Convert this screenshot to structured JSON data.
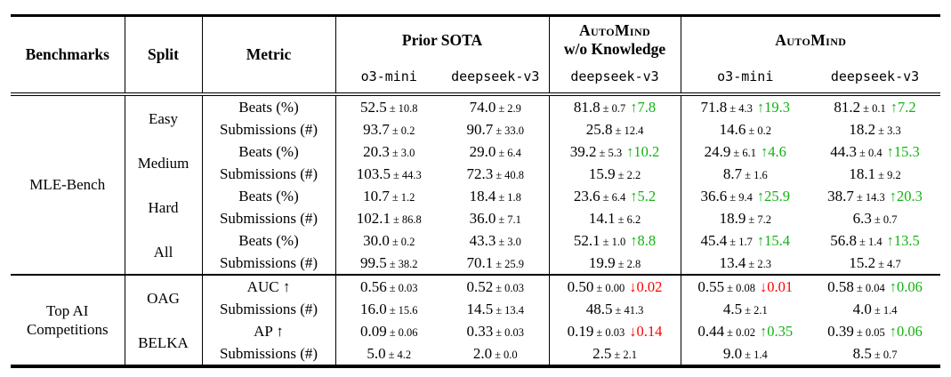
{
  "colors": {
    "up": "#12b212",
    "down": "#fd0000"
  },
  "glyphs": {
    "plus_minus": "±",
    "arrow_up": "↑",
    "arrow_down": "↓"
  },
  "table": {
    "headers": {
      "benchmarks": "Benchmarks",
      "split": "Split",
      "metric": "Metric",
      "groups": [
        {
          "label": "Prior SOTA",
          "smallcaps": false,
          "models": [
            "o3-mini",
            "deepseek-v3"
          ]
        },
        {
          "label": "AutoMind",
          "sublabel": "w/o Knowledge",
          "smallcaps": true,
          "models": [
            "deepseek-v3"
          ]
        },
        {
          "label": "AutoMind",
          "smallcaps": true,
          "models": [
            "o3-mini",
            "deepseek-v3"
          ]
        }
      ]
    },
    "sections": [
      {
        "benchmark": "MLE-Bench",
        "splits": [
          {
            "name": "Easy",
            "rows": [
              {
                "metric": "Beats (%)",
                "cells": [
                  {
                    "value": "52.5",
                    "pm": "10.8"
                  },
                  {
                    "value": "74.0",
                    "pm": "2.9"
                  },
                  {
                    "value": "81.8",
                    "pm": "0.7",
                    "delta": "7.8",
                    "dir": "up"
                  },
                  {
                    "value": "71.8",
                    "pm": "4.3",
                    "delta": "19.3",
                    "dir": "up"
                  },
                  {
                    "value": "81.2",
                    "pm": "0.1",
                    "delta": "7.2",
                    "dir": "up"
                  }
                ]
              },
              {
                "metric": "Submissions (#)",
                "cells": [
                  {
                    "value": "93.7",
                    "pm": "0.2"
                  },
                  {
                    "value": "90.7",
                    "pm": "33.0"
                  },
                  {
                    "value": "25.8",
                    "pm": "12.4"
                  },
                  {
                    "value": "14.6",
                    "pm": "0.2"
                  },
                  {
                    "value": "18.2",
                    "pm": "3.3"
                  }
                ]
              }
            ]
          },
          {
            "name": "Medium",
            "rows": [
              {
                "metric": "Beats (%)",
                "cells": [
                  {
                    "value": "20.3",
                    "pm": "3.0"
                  },
                  {
                    "value": "29.0",
                    "pm": "6.4"
                  },
                  {
                    "value": "39.2",
                    "pm": "5.3",
                    "delta": "10.2",
                    "dir": "up"
                  },
                  {
                    "value": "24.9",
                    "pm": "6.1",
                    "delta": "4.6",
                    "dir": "up"
                  },
                  {
                    "value": "44.3",
                    "pm": "0.4",
                    "delta": "15.3",
                    "dir": "up"
                  }
                ]
              },
              {
                "metric": "Submissions (#)",
                "cells": [
                  {
                    "value": "103.5",
                    "pm": "44.3"
                  },
                  {
                    "value": "72.3",
                    "pm": "40.8"
                  },
                  {
                    "value": "15.9",
                    "pm": "2.2"
                  },
                  {
                    "value": "8.7",
                    "pm": "1.6"
                  },
                  {
                    "value": "18.1",
                    "pm": "9.2"
                  }
                ]
              }
            ]
          },
          {
            "name": "Hard",
            "rows": [
              {
                "metric": "Beats (%)",
                "cells": [
                  {
                    "value": "10.7",
                    "pm": "1.2"
                  },
                  {
                    "value": "18.4",
                    "pm": "1.8"
                  },
                  {
                    "value": "23.6",
                    "pm": "6.4",
                    "delta": "5.2",
                    "dir": "up"
                  },
                  {
                    "value": "36.6",
                    "pm": "9.4",
                    "delta": "25.9",
                    "dir": "up"
                  },
                  {
                    "value": "38.7",
                    "pm": "14.3",
                    "delta": "20.3",
                    "dir": "up"
                  }
                ]
              },
              {
                "metric": "Submissions (#)",
                "cells": [
                  {
                    "value": "102.1",
                    "pm": "86.8"
                  },
                  {
                    "value": "36.0",
                    "pm": "7.1"
                  },
                  {
                    "value": "14.1",
                    "pm": "6.2"
                  },
                  {
                    "value": "18.9",
                    "pm": "7.2"
                  },
                  {
                    "value": "6.3",
                    "pm": "0.7"
                  }
                ]
              }
            ]
          },
          {
            "name": "All",
            "rows": [
              {
                "metric": "Beats (%)",
                "cells": [
                  {
                    "value": "30.0",
                    "pm": "0.2"
                  },
                  {
                    "value": "43.3",
                    "pm": "3.0"
                  },
                  {
                    "value": "52.1",
                    "pm": "1.0",
                    "delta": "8.8",
                    "dir": "up"
                  },
                  {
                    "value": "45.4",
                    "pm": "1.7",
                    "delta": "15.4",
                    "dir": "up"
                  },
                  {
                    "value": "56.8",
                    "pm": "1.4",
                    "delta": "13.5",
                    "dir": "up"
                  }
                ]
              },
              {
                "metric": "Submissions (#)",
                "cells": [
                  {
                    "value": "99.5",
                    "pm": "38.2"
                  },
                  {
                    "value": "70.1",
                    "pm": "25.9"
                  },
                  {
                    "value": "19.9",
                    "pm": "2.8"
                  },
                  {
                    "value": "13.4",
                    "pm": "2.3"
                  },
                  {
                    "value": "15.2",
                    "pm": "4.7"
                  }
                ]
              }
            ]
          }
        ]
      },
      {
        "benchmark": "Top AI Competitions",
        "splits": [
          {
            "name": "OAG",
            "rows": [
              {
                "metric": "AUC ↑",
                "cells": [
                  {
                    "value": "0.56",
                    "pm": "0.03"
                  },
                  {
                    "value": "0.52",
                    "pm": "0.03"
                  },
                  {
                    "value": "0.50",
                    "pm": "0.00",
                    "delta": "0.02",
                    "dir": "down"
                  },
                  {
                    "value": "0.55",
                    "pm": "0.08",
                    "delta": "0.01",
                    "dir": "down"
                  },
                  {
                    "value": "0.58",
                    "pm": "0.04",
                    "delta": "0.06",
                    "dir": "up"
                  }
                ]
              },
              {
                "metric": "Submissions (#)",
                "cells": [
                  {
                    "value": "16.0",
                    "pm": "15.6"
                  },
                  {
                    "value": "14.5",
                    "pm": "13.4"
                  },
                  {
                    "value": "48.5",
                    "pm": "41.3"
                  },
                  {
                    "value": "4.5",
                    "pm": "2.1"
                  },
                  {
                    "value": "4.0",
                    "pm": "1.4"
                  }
                ]
              }
            ]
          },
          {
            "name": "BELKA",
            "rows": [
              {
                "metric": "AP ↑",
                "cells": [
                  {
                    "value": "0.09",
                    "pm": "0.06"
                  },
                  {
                    "value": "0.33",
                    "pm": "0.03"
                  },
                  {
                    "value": "0.19",
                    "pm": "0.03",
                    "delta": "0.14",
                    "dir": "down"
                  },
                  {
                    "value": "0.44",
                    "pm": "0.02",
                    "delta": "0.35",
                    "dir": "up"
                  },
                  {
                    "value": "0.39",
                    "pm": "0.05",
                    "delta": "0.06",
                    "dir": "up"
                  }
                ]
              },
              {
                "metric": "Submissions (#)",
                "cells": [
                  {
                    "value": "5.0",
                    "pm": "4.2"
                  },
                  {
                    "value": "2.0",
                    "pm": "0.0"
                  },
                  {
                    "value": "2.5",
                    "pm": "2.1"
                  },
                  {
                    "value": "9.0",
                    "pm": "1.4"
                  },
                  {
                    "value": "8.5",
                    "pm": "0.7"
                  }
                ]
              }
            ]
          }
        ]
      }
    ]
  }
}
